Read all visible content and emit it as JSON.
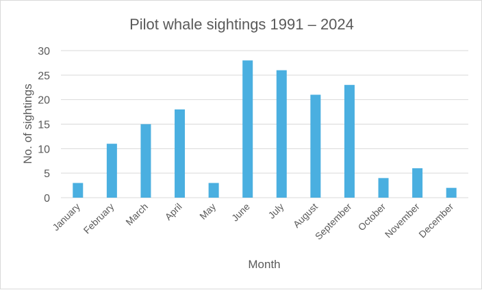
{
  "chart_data": {
    "type": "bar",
    "title": "Pilot whale sightings 1991 – 2024",
    "xlabel": "Month",
    "ylabel": "No. of sightings",
    "categories": [
      "January",
      "February",
      "March",
      "April",
      "May",
      "June",
      "July",
      "August",
      "September",
      "October",
      "November",
      "December"
    ],
    "values": [
      3,
      11,
      15,
      18,
      3,
      28,
      26,
      21,
      23,
      4,
      6,
      2
    ],
    "ylim": [
      0,
      30
    ],
    "yticks": [
      0,
      5,
      10,
      15,
      20,
      25,
      30
    ],
    "grid": true,
    "legend": "none",
    "colors": {
      "bar": "#4AAFE0",
      "grid": "#d9d9d9",
      "text": "#595959"
    }
  }
}
